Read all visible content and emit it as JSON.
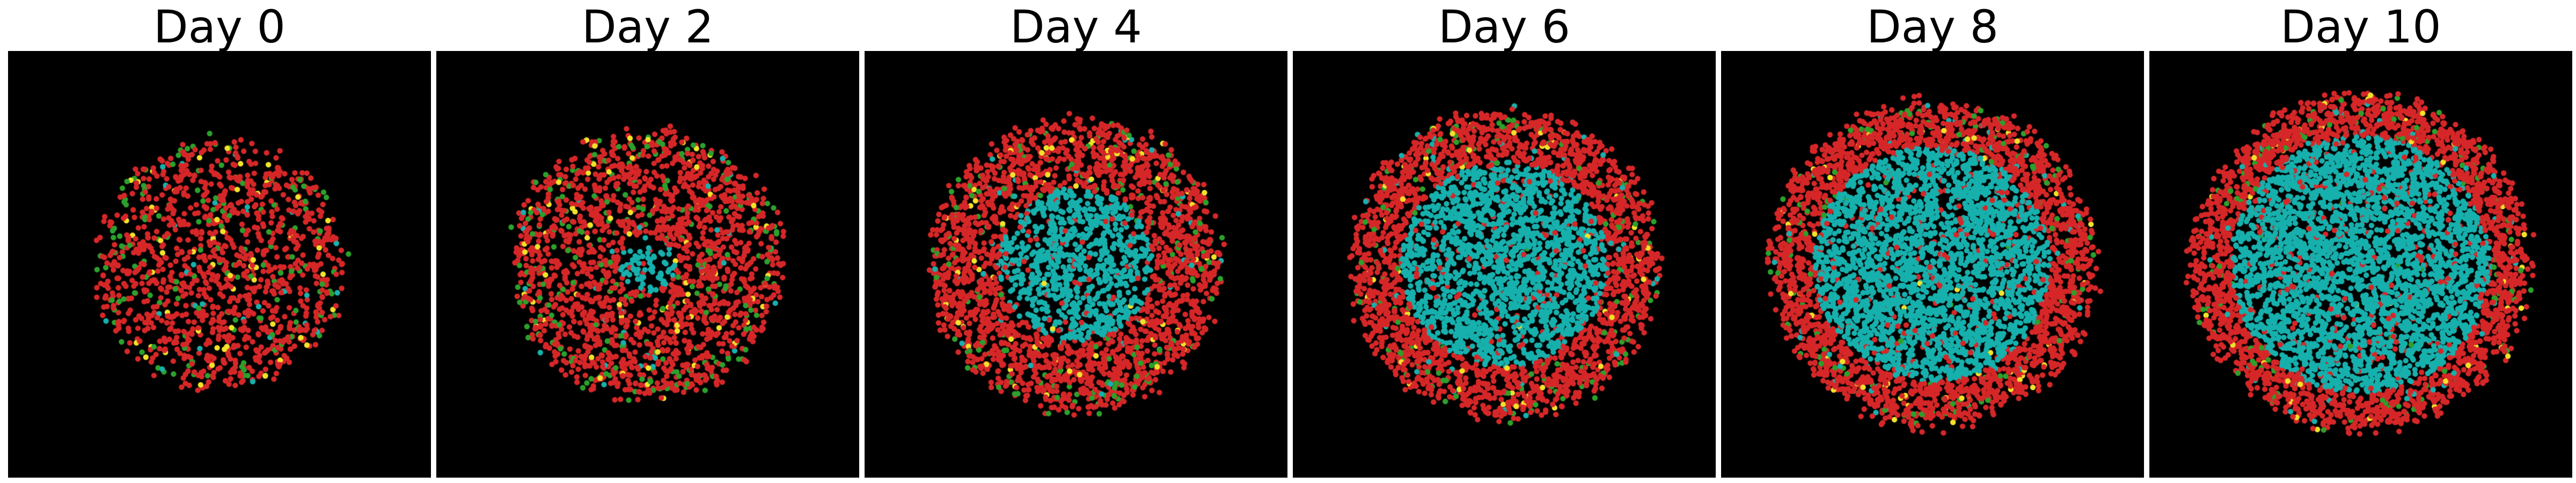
{
  "figure": {
    "panels": [
      {
        "title": "Day 0",
        "cell_mix": {
          "red": 0.86,
          "green": 0.1,
          "yellow": 0.04,
          "cyan": 0.0
        }
      },
      {
        "title": "Day 2",
        "cell_mix": {
          "red": 0.84,
          "green": 0.1,
          "yellow": 0.04,
          "cyan": 0.02
        }
      },
      {
        "title": "Day 4",
        "cell_mix": {
          "red": 0.68,
          "green": 0.06,
          "yellow": 0.03,
          "cyan": 0.23
        }
      },
      {
        "title": "Day 6",
        "cell_mix": {
          "red": 0.62,
          "green": 0.05,
          "yellow": 0.02,
          "cyan": 0.31
        }
      },
      {
        "title": "Day 8",
        "cell_mix": {
          "red": 0.6,
          "green": 0.04,
          "yellow": 0.02,
          "cyan": 0.34
        }
      },
      {
        "title": "Day 10",
        "cell_mix": {
          "red": 0.58,
          "green": 0.04,
          "yellow": 0.02,
          "cyan": 0.36
        }
      }
    ],
    "colors": {
      "background": "#000000",
      "red": "#d62728",
      "green": "#2ca02c",
      "yellow": "#f2e22a",
      "cyan": "#17b0ad"
    }
  }
}
